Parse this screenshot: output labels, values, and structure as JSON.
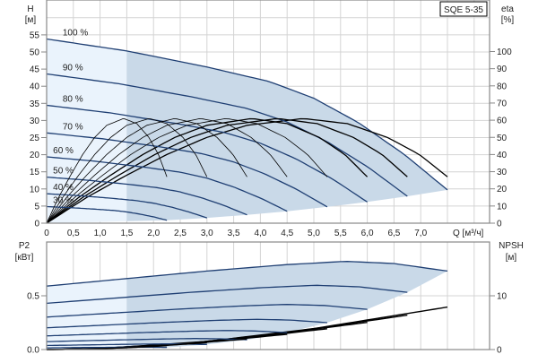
{
  "chart_data": [
    {
      "type": "line",
      "model_label": "SQE 5-35",
      "xlabel": "Q [м³/ч]",
      "x_ticks": [
        "0",
        "0,5",
        "1,0",
        "1,5",
        "2,0",
        "2,5",
        "3,0",
        "3,5",
        "4,0",
        "4,5",
        "5,0",
        "5,5",
        "6,0",
        "6,5",
        "7,0"
      ],
      "ylabel_left": [
        "H",
        "[м]"
      ],
      "ylabel_right": [
        "eta",
        "[%]"
      ],
      "y_ticks_left": [
        "0",
        "5",
        "10",
        "15",
        "20",
        "25",
        "30",
        "35",
        "40",
        "45",
        "50",
        "55"
      ],
      "y_ticks_right": [
        "0",
        "10",
        "20",
        "30",
        "40",
        "50",
        "60",
        "70",
        "80",
        "90",
        "100"
      ],
      "ylim_left": [
        0,
        65
      ],
      "ylim_right": [
        0,
        130
      ],
      "xlim": [
        0,
        8.25
      ],
      "grid": true,
      "speed_labels": [
        "100 %",
        "90 %",
        "80 %",
        "70 %",
        "60 %",
        "50 %",
        "40 %",
        "30 %"
      ],
      "speeds": [
        1.0,
        0.9,
        0.8,
        0.7,
        0.6,
        0.5,
        0.4,
        0.3
      ],
      "head_curve_100": {
        "Q": [
          0,
          1.5,
          3,
          4.16,
          5,
          5.84,
          6.7,
          7.5
        ],
        "H": [
          53.8,
          50.3,
          45.6,
          41.4,
          36.5,
          29.3,
          20,
          9.7
        ]
      },
      "efficiency_curve_normalized": {
        "Q_fraction": [
          0,
          0.1,
          0.2,
          0.3,
          0.4,
          0.5,
          0.64,
          0.75,
          0.85,
          0.93,
          1.0
        ],
        "eta": [
          0,
          15,
          28,
          40,
          50,
          57,
          61,
          58,
          50,
          40,
          27
        ]
      },
      "series_color": "#1f3f73",
      "efficiency_color": "#000000",
      "fill_color": "#c9d9e8",
      "fill_color_light": "#eaf3fc"
    },
    {
      "type": "line",
      "ylabel_left": [
        "P2",
        "[кВт]"
      ],
      "ylabel_right": [
        "NPSH",
        "[м]"
      ],
      "y_ticks_left": [
        "0.0",
        "0.5"
      ],
      "y_ticks_right": [
        "0",
        "10"
      ],
      "ylim_left": [
        0,
        1.0
      ],
      "ylim_right": [
        0,
        20
      ],
      "grid": true,
      "power_curve_100": {
        "Q": [
          0,
          1.5,
          3,
          4.5,
          5.6,
          6.5,
          7.5
        ],
        "P2": [
          0.59,
          0.66,
          0.73,
          0.79,
          0.82,
          0.8,
          0.73
        ]
      },
      "npsh_curve_100": {
        "Q": [
          0,
          1,
          3,
          5,
          7.5
        ],
        "NPSH": [
          0,
          0.2,
          1.5,
          3.9,
          7.9
        ]
      }
    }
  ]
}
